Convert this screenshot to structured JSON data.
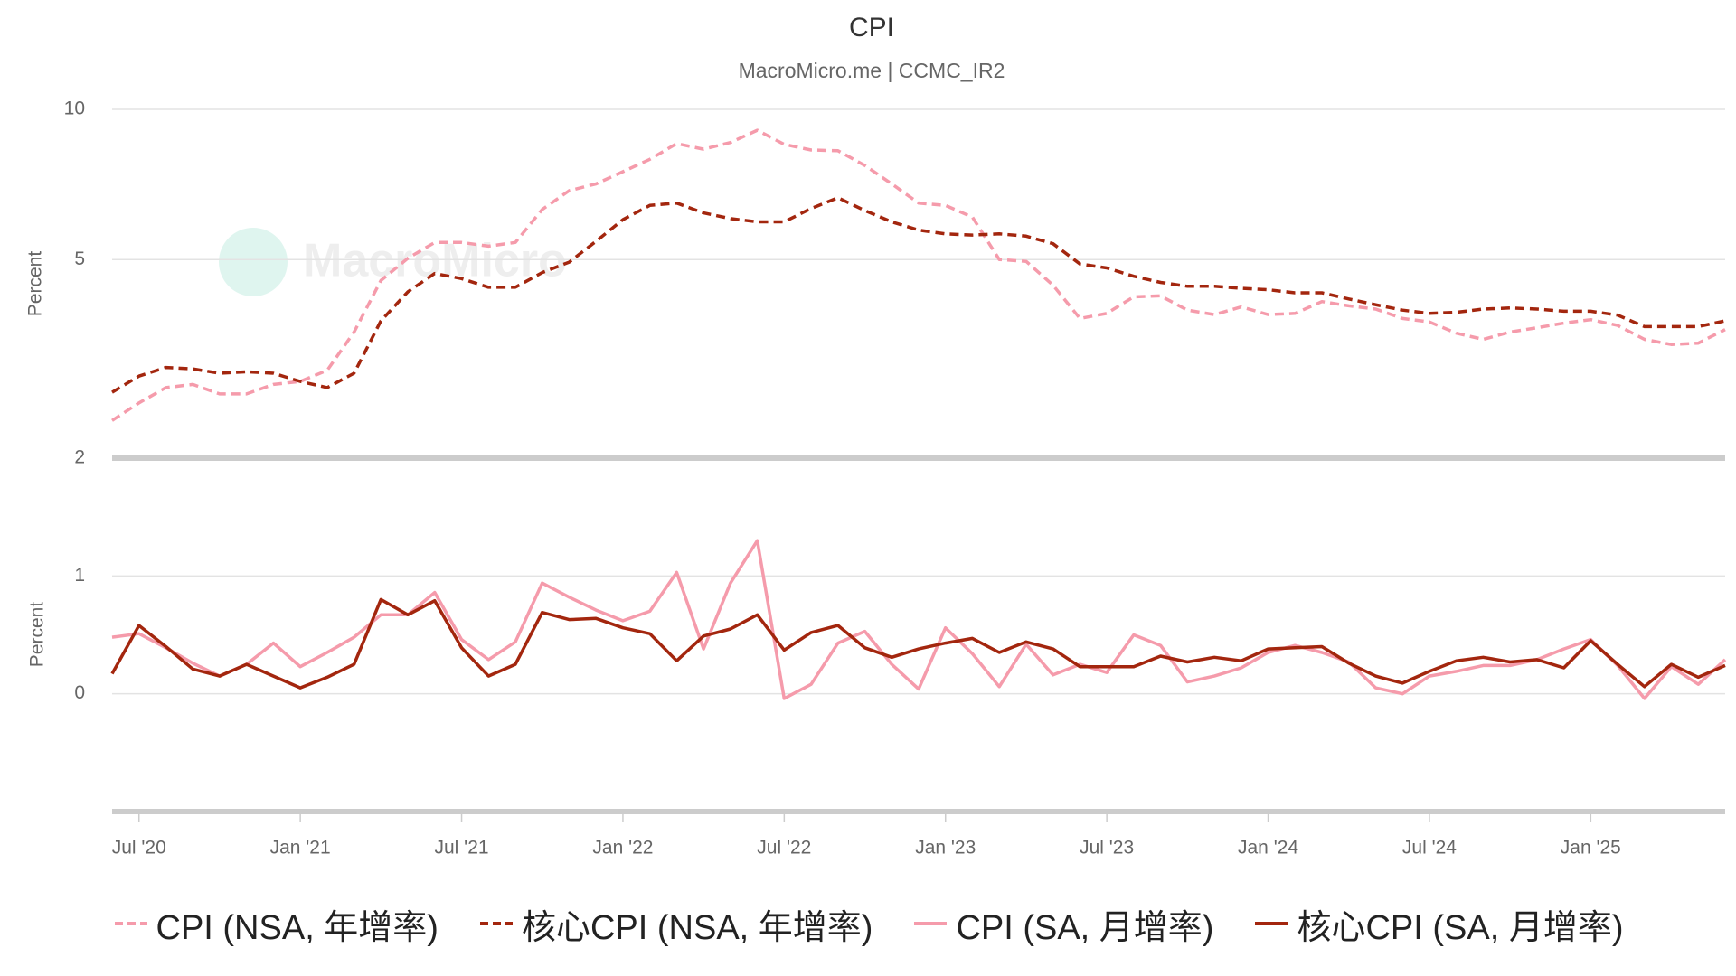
{
  "chart_data": [
    {
      "type": "line",
      "title": "CPI",
      "subtitle": "MacroMicro.me | CCMC_IR2",
      "watermark": "MacroMicro",
      "y_label": "Percent",
      "log": true,
      "ylim": [
        2,
        10
      ],
      "yticks": [
        2,
        5,
        10
      ],
      "grid": true,
      "series": [
        {
          "name": "CPI (NSA, 年增率)",
          "color": "#f59bab",
          "dashed": true,
          "values": [
            2.38,
            2.58,
            2.77,
            2.81,
            2.69,
            2.69,
            2.81,
            2.85,
            3.0,
            3.58,
            4.54,
            5.03,
            5.41,
            5.41,
            5.32,
            5.41,
            6.3,
            6.87,
            7.09,
            7.5,
            7.94,
            8.54,
            8.32,
            8.58,
            9.08,
            8.51,
            8.29,
            8.26,
            7.72,
            7.09,
            6.49,
            6.42,
            6.08,
            5.0,
            4.96,
            4.44,
            3.81,
            3.9,
            4.21,
            4.23,
            3.96,
            3.88,
            4.02,
            3.88,
            3.9,
            4.12,
            4.04,
            3.98,
            3.81,
            3.75,
            3.56,
            3.46,
            3.58,
            3.65,
            3.73,
            3.79,
            3.69,
            3.46,
            3.38,
            3.4,
            3.62
          ]
        },
        {
          "name": "核心CPI (NSA, 年增率)",
          "color": "#a3260e",
          "dashed": true,
          "values": [
            2.71,
            2.92,
            3.04,
            3.02,
            2.96,
            2.98,
            2.96,
            2.85,
            2.77,
            2.96,
            3.77,
            4.31,
            4.69,
            4.58,
            4.4,
            4.4,
            4.71,
            4.94,
            5.44,
            6.01,
            6.42,
            6.49,
            6.2,
            6.04,
            5.95,
            5.95,
            6.33,
            6.65,
            6.27,
            5.95,
            5.73,
            5.63,
            5.6,
            5.63,
            5.57,
            5.38,
            4.9,
            4.81,
            4.63,
            4.5,
            4.42,
            4.42,
            4.38,
            4.35,
            4.29,
            4.29,
            4.17,
            4.06,
            3.96,
            3.9,
            3.92,
            3.98,
            4.0,
            3.98,
            3.94,
            3.94,
            3.87,
            3.67,
            3.67,
            3.67,
            3.77
          ]
        }
      ]
    },
    {
      "type": "line",
      "y_label": "Percent",
      "ylim": [
        -1,
        2
      ],
      "yticks": [
        0,
        1
      ],
      "grid": true,
      "categories": [
        null,
        "Jul '20",
        null,
        null,
        null,
        null,
        null,
        "Jan '21",
        null,
        null,
        null,
        null,
        null,
        "Jul '21",
        null,
        null,
        null,
        null,
        null,
        "Jan '22",
        null,
        null,
        null,
        null,
        null,
        "Jul '22",
        null,
        null,
        null,
        null,
        null,
        "Jan '23",
        null,
        null,
        null,
        null,
        null,
        "Jul '23",
        null,
        null,
        null,
        null,
        null,
        "Jan '24",
        null,
        null,
        null,
        null,
        null,
        "Jul '24",
        null,
        null,
        null,
        null,
        null,
        "Jan '25",
        null,
        null,
        null,
        null,
        null
      ],
      "series": [
        {
          "name": "CPI (SA, 月增率)",
          "color": "#f59bab",
          "dashed": false,
          "values": [
            0.48,
            0.51,
            0.39,
            0.26,
            0.15,
            0.25,
            0.43,
            0.23,
            0.35,
            0.48,
            0.67,
            0.67,
            0.86,
            0.46,
            0.29,
            0.44,
            0.94,
            0.82,
            0.71,
            0.62,
            0.7,
            1.03,
            0.38,
            0.94,
            1.3,
            -0.04,
            0.08,
            0.43,
            0.53,
            0.25,
            0.04,
            0.56,
            0.34,
            0.06,
            0.42,
            0.16,
            0.25,
            0.18,
            0.5,
            0.41,
            0.1,
            0.15,
            0.22,
            0.35,
            0.41,
            0.35,
            0.27,
            0.05,
            0.0,
            0.15,
            0.19,
            0.24,
            0.24,
            0.29,
            0.38,
            0.46,
            0.24,
            -0.04,
            0.23,
            0.08,
            0.29
          ]
        },
        {
          "name": "核心CPI (SA, 月增率)",
          "color": "#a3260e",
          "dashed": false,
          "values": [
            0.17,
            0.58,
            0.4,
            0.21,
            0.15,
            0.25,
            0.15,
            0.05,
            0.14,
            0.25,
            0.8,
            0.67,
            0.79,
            0.39,
            0.15,
            0.25,
            0.69,
            0.63,
            0.64,
            0.56,
            0.51,
            0.28,
            0.49,
            0.55,
            0.67,
            0.37,
            0.52,
            0.58,
            0.39,
            0.31,
            0.38,
            0.43,
            0.47,
            0.35,
            0.44,
            0.38,
            0.23,
            0.23,
            0.23,
            0.32,
            0.27,
            0.31,
            0.28,
            0.38,
            0.39,
            0.4,
            0.26,
            0.15,
            0.09,
            0.19,
            0.28,
            0.31,
            0.27,
            0.29,
            0.22,
            0.45,
            0.25,
            0.06,
            0.25,
            0.14,
            0.24
          ]
        }
      ]
    }
  ]
}
